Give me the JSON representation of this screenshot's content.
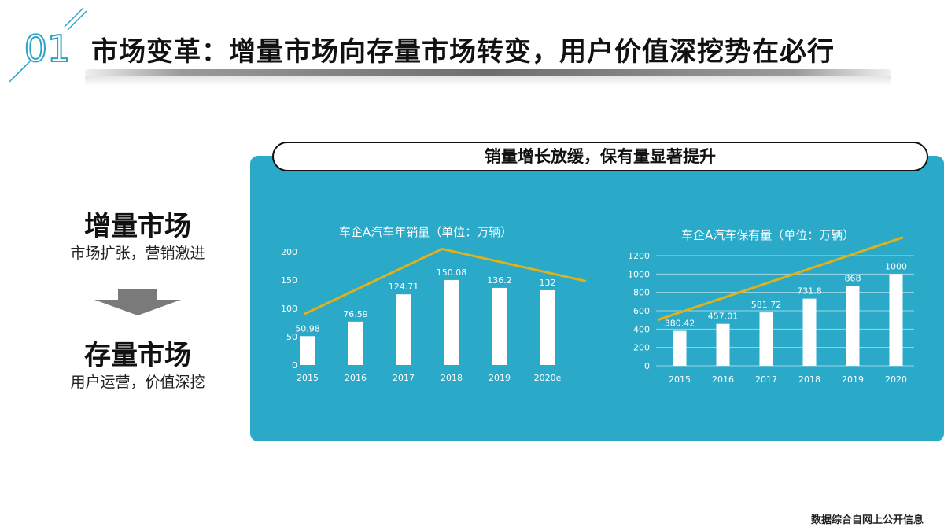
{
  "header": {
    "section_number": "01",
    "title": "市场变革：增量市场向存量市场转变，用户价值深挖势在必行"
  },
  "left": {
    "incremental_title": "增量市场",
    "incremental_sub": "市场扩张，营销激进",
    "stock_title": "存量市场",
    "stock_sub": "用户运营，价值深挖"
  },
  "panel": {
    "header": "销量增长放缓，保有量显著提升"
  },
  "colors": {
    "panel_bg": "#2aa9c9",
    "bar": "#ffffff",
    "trend_line": "#e0b21a",
    "arrow": "#7a7a7a"
  },
  "chart_data": [
    {
      "type": "bar",
      "title": "车企A汽车年销量（单位：万辆）",
      "categories": [
        "2015",
        "2016",
        "2017",
        "2018",
        "2019",
        "2020e"
      ],
      "values": [
        50.98,
        76.59,
        124.71,
        150.08,
        136.2,
        132
      ],
      "value_labels": [
        "50.98",
        "76.59",
        "124.71",
        "150.08",
        "136.2",
        "132"
      ],
      "yticks": [
        "0",
        "50",
        "100",
        "150",
        "200"
      ],
      "ylim": [
        0,
        200
      ],
      "grid": false,
      "trend_line": [
        90,
        148,
        205
      ]
    },
    {
      "type": "bar",
      "title": "车企A汽车保有量（单位：万辆）",
      "categories": [
        "2015",
        "2016",
        "2017",
        "2018",
        "2019",
        "2020"
      ],
      "values": [
        380.42,
        457.01,
        581.72,
        731.8,
        868,
        1000
      ],
      "value_labels": [
        "380.42",
        "457.01",
        "581.72",
        "731.8",
        "868",
        "1000"
      ],
      "yticks": [
        "0",
        "200",
        "400",
        "600",
        "800",
        "1000",
        "1200"
      ],
      "ylim": [
        0,
        1200
      ],
      "grid": true,
      "trend_line": [
        1,
        1400
      ]
    }
  ],
  "footnote": "数据综合自网上公开信息"
}
